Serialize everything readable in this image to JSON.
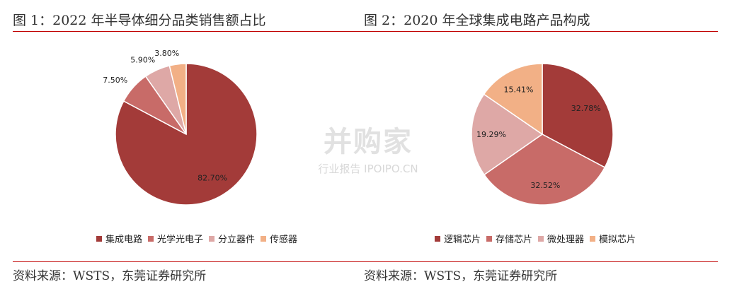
{
  "charts": [
    {
      "fig_title": "图 1：2022 年半导体细分品类销售额占比",
      "source": "资料来源：WSTS，东莞证券研究所",
      "chart_data": {
        "type": "pie",
        "title": "图 1：2022 年半导体细分品类销售额占比",
        "start_angle_deg": 0,
        "legend_position": "bottom",
        "slices": [
          {
            "name": "集成电路",
            "value": 82.7,
            "label": "82.70%",
            "color": "#a33b39"
          },
          {
            "name": "光学光电子",
            "value": 7.5,
            "label": "7.50%",
            "color": "#c86b68"
          },
          {
            "name": "分立器件",
            "value": 5.9,
            "label": "5.90%",
            "color": "#dea8a6"
          },
          {
            "name": "传感器",
            "value": 3.8,
            "label": "3.80%",
            "color": "#f2b086"
          }
        ]
      }
    },
    {
      "fig_title": "图 2：2020 年全球集成电路产品构成",
      "source": "资料来源：WSTS，东莞证券研究所",
      "chart_data": {
        "type": "pie",
        "title": "图 2：2020 年全球集成电路产品构成",
        "start_angle_deg": 0,
        "legend_position": "bottom",
        "slices": [
          {
            "name": "逻辑芯片",
            "value": 32.78,
            "label": "32.78%",
            "color": "#a33b39"
          },
          {
            "name": "存储芯片",
            "value": 32.52,
            "label": "32.52%",
            "color": "#c86b68"
          },
          {
            "name": "微处理器",
            "value": 19.29,
            "label": "19.29%",
            "color": "#dea8a6"
          },
          {
            "name": "模拟芯片",
            "value": 15.41,
            "label": "15.41%",
            "color": "#f2b086"
          }
        ]
      }
    }
  ],
  "watermark": {
    "main": "并购家",
    "sub": "行业报告 IPOIPO.CN"
  }
}
